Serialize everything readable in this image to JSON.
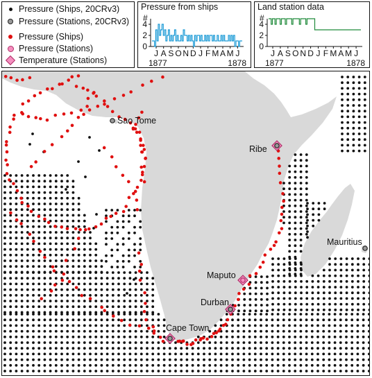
{
  "legend": {
    "items": [
      {
        "label": "Pressure (Ships, 20CRv3)",
        "icon": "black-dot-icon"
      },
      {
        "label": "Pressure (Stations, 20CRv3)",
        "icon": "grey-circle-icon"
      },
      {
        "label": "Pressure (Ships)",
        "icon": "red-dot-icon"
      },
      {
        "label": "Pressure (Stations)",
        "icon": "pink-circle-icon"
      },
      {
        "label": "Temperature (Stations)",
        "icon": "pink-diamond-icon"
      }
    ]
  },
  "colors": {
    "ships_20crv3": "#111111",
    "ships": "#e01010",
    "stations": "#f58fbf",
    "ship_line": "#1a9ad6",
    "land_line": "#1f8a3a",
    "land": "#d9d9d9",
    "ocean": "#ffffff"
  },
  "chart_data": [
    {
      "type": "line",
      "title": "Pressure from ships",
      "ylabel": "#",
      "ylim": [
        0,
        4
      ],
      "yticks": [
        0,
        2,
        4
      ],
      "month_labels": [
        "J",
        "A",
        "S",
        "O",
        "N",
        "D",
        "J",
        "F",
        "M",
        "A",
        "M",
        "J"
      ],
      "year_labels": [
        "1877",
        "1878"
      ],
      "series": [
        {
          "values": [
            1,
            1,
            0,
            3,
            1,
            4,
            2,
            3,
            4,
            2,
            3,
            1,
            2,
            3,
            1,
            2,
            1,
            2,
            3,
            1,
            2,
            1,
            1,
            2,
            1,
            3,
            2,
            2,
            1,
            2,
            1,
            2,
            1,
            0,
            2,
            1,
            2,
            2,
            1,
            2,
            1,
            1,
            2,
            1,
            2,
            1,
            2,
            2,
            1,
            2,
            1,
            1,
            2,
            1,
            1,
            2,
            1,
            2,
            1,
            1,
            1,
            2,
            1,
            2,
            1,
            2,
            0,
            1,
            1,
            0,
            1,
            1
          ]
        }
      ]
    },
    {
      "type": "line",
      "title": "Land station data",
      "ylabel": "#",
      "ylim": [
        0,
        4
      ],
      "yticks": [
        0,
        2,
        4
      ],
      "month_labels": [
        "J",
        "A",
        "S",
        "O",
        "N",
        "D",
        "J",
        "F",
        "M",
        "A",
        "M",
        "J"
      ],
      "year_labels": [
        "1877",
        "1878"
      ],
      "series": [
        {
          "values": [
            5,
            5,
            4,
            5,
            5,
            4,
            5,
            5,
            5,
            4,
            5,
            5,
            5,
            4,
            5,
            5,
            5,
            5,
            4,
            5,
            5,
            5,
            5,
            5,
            4,
            5,
            5,
            5,
            5,
            4,
            5,
            5,
            5,
            5,
            5,
            5,
            3,
            3,
            3,
            3,
            3,
            3,
            3,
            3,
            3,
            3,
            3,
            3,
            3,
            3,
            3,
            3,
            3,
            3,
            3,
            3,
            3,
            3,
            3,
            3,
            3,
            3,
            3,
            3,
            3,
            3,
            3,
            3,
            3,
            3,
            3,
            3
          ]
        }
      ]
    }
  ],
  "map": {
    "stations": [
      {
        "name": "Sao Tome",
        "symbol": "grey-circle"
      },
      {
        "name": "Ribe",
        "symbol": "grey-circle-diamond"
      },
      {
        "name": "Mauritius",
        "symbol": "grey-circle"
      },
      {
        "name": "Maputo",
        "symbol": "pink-circle-diamond"
      },
      {
        "name": "Durban",
        "symbol": "grey-circle-diamond"
      },
      {
        "name": "Cape Town",
        "symbol": "grey-circle-diamond"
      }
    ]
  }
}
